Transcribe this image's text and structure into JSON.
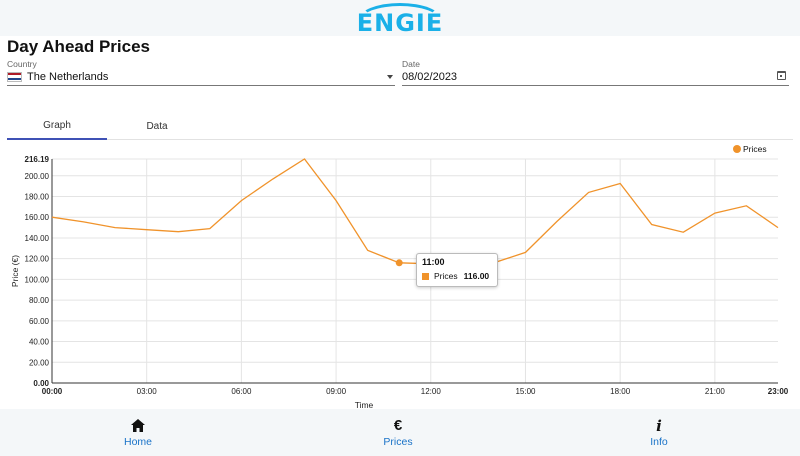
{
  "header": {
    "logo_text": "ENGIE"
  },
  "page": {
    "title": "Day Ahead Prices"
  },
  "country": {
    "label": "Country",
    "value": "The Netherlands",
    "flag_colors": [
      "#ae1c28",
      "#ffffff",
      "#21468b"
    ]
  },
  "date": {
    "label": "Date",
    "value": "08/02/2023"
  },
  "tabs": [
    {
      "label": "Graph",
      "active": true
    },
    {
      "label": "Data",
      "active": false
    }
  ],
  "chart_data": {
    "type": "line",
    "x": [
      "00:00",
      "01:00",
      "02:00",
      "03:00",
      "04:00",
      "05:00",
      "06:00",
      "07:00",
      "08:00",
      "09:00",
      "10:00",
      "11:00",
      "12:00",
      "13:00",
      "14:00",
      "15:00",
      "16:00",
      "17:00",
      "18:00",
      "19:00",
      "20:00",
      "21:00",
      "22:00",
      "23:00"
    ],
    "series": [
      {
        "name": "Prices",
        "color": "#f0932b",
        "values": [
          160.0,
          155.5,
          150.0,
          148.0,
          146.0,
          149.0,
          176.0,
          197.0,
          216.19,
          176.0,
          128.0,
          116.0,
          115.0,
          115.5,
          116.0,
          126.0,
          156.0,
          184.0,
          192.5,
          153.0,
          145.5,
          164.0,
          171.0,
          150.0
        ]
      }
    ],
    "xticks": [
      "00:00",
      "03:00",
      "06:00",
      "09:00",
      "12:00",
      "15:00",
      "18:00",
      "21:00",
      "23:00"
    ],
    "yticks": [
      "0.00",
      "20.00",
      "40.00",
      "60.00",
      "80.00",
      "100.00",
      "120.00",
      "140.00",
      "160.00",
      "180.00",
      "200.00",
      "216.19"
    ],
    "ylim": [
      0,
      216.19
    ],
    "xlabel": "Time",
    "ylabel": "Price (€)",
    "legend": "top-right",
    "grid": true,
    "tooltip": {
      "time": "11:00",
      "series": "Prices",
      "value": "116.00",
      "index": 11
    }
  },
  "nav": [
    {
      "label": "Home",
      "icon": "home-icon"
    },
    {
      "label": "Prices",
      "icon": "euro-icon",
      "glyph": "€"
    },
    {
      "label": "Info",
      "icon": "info-icon",
      "glyph": "i"
    }
  ]
}
